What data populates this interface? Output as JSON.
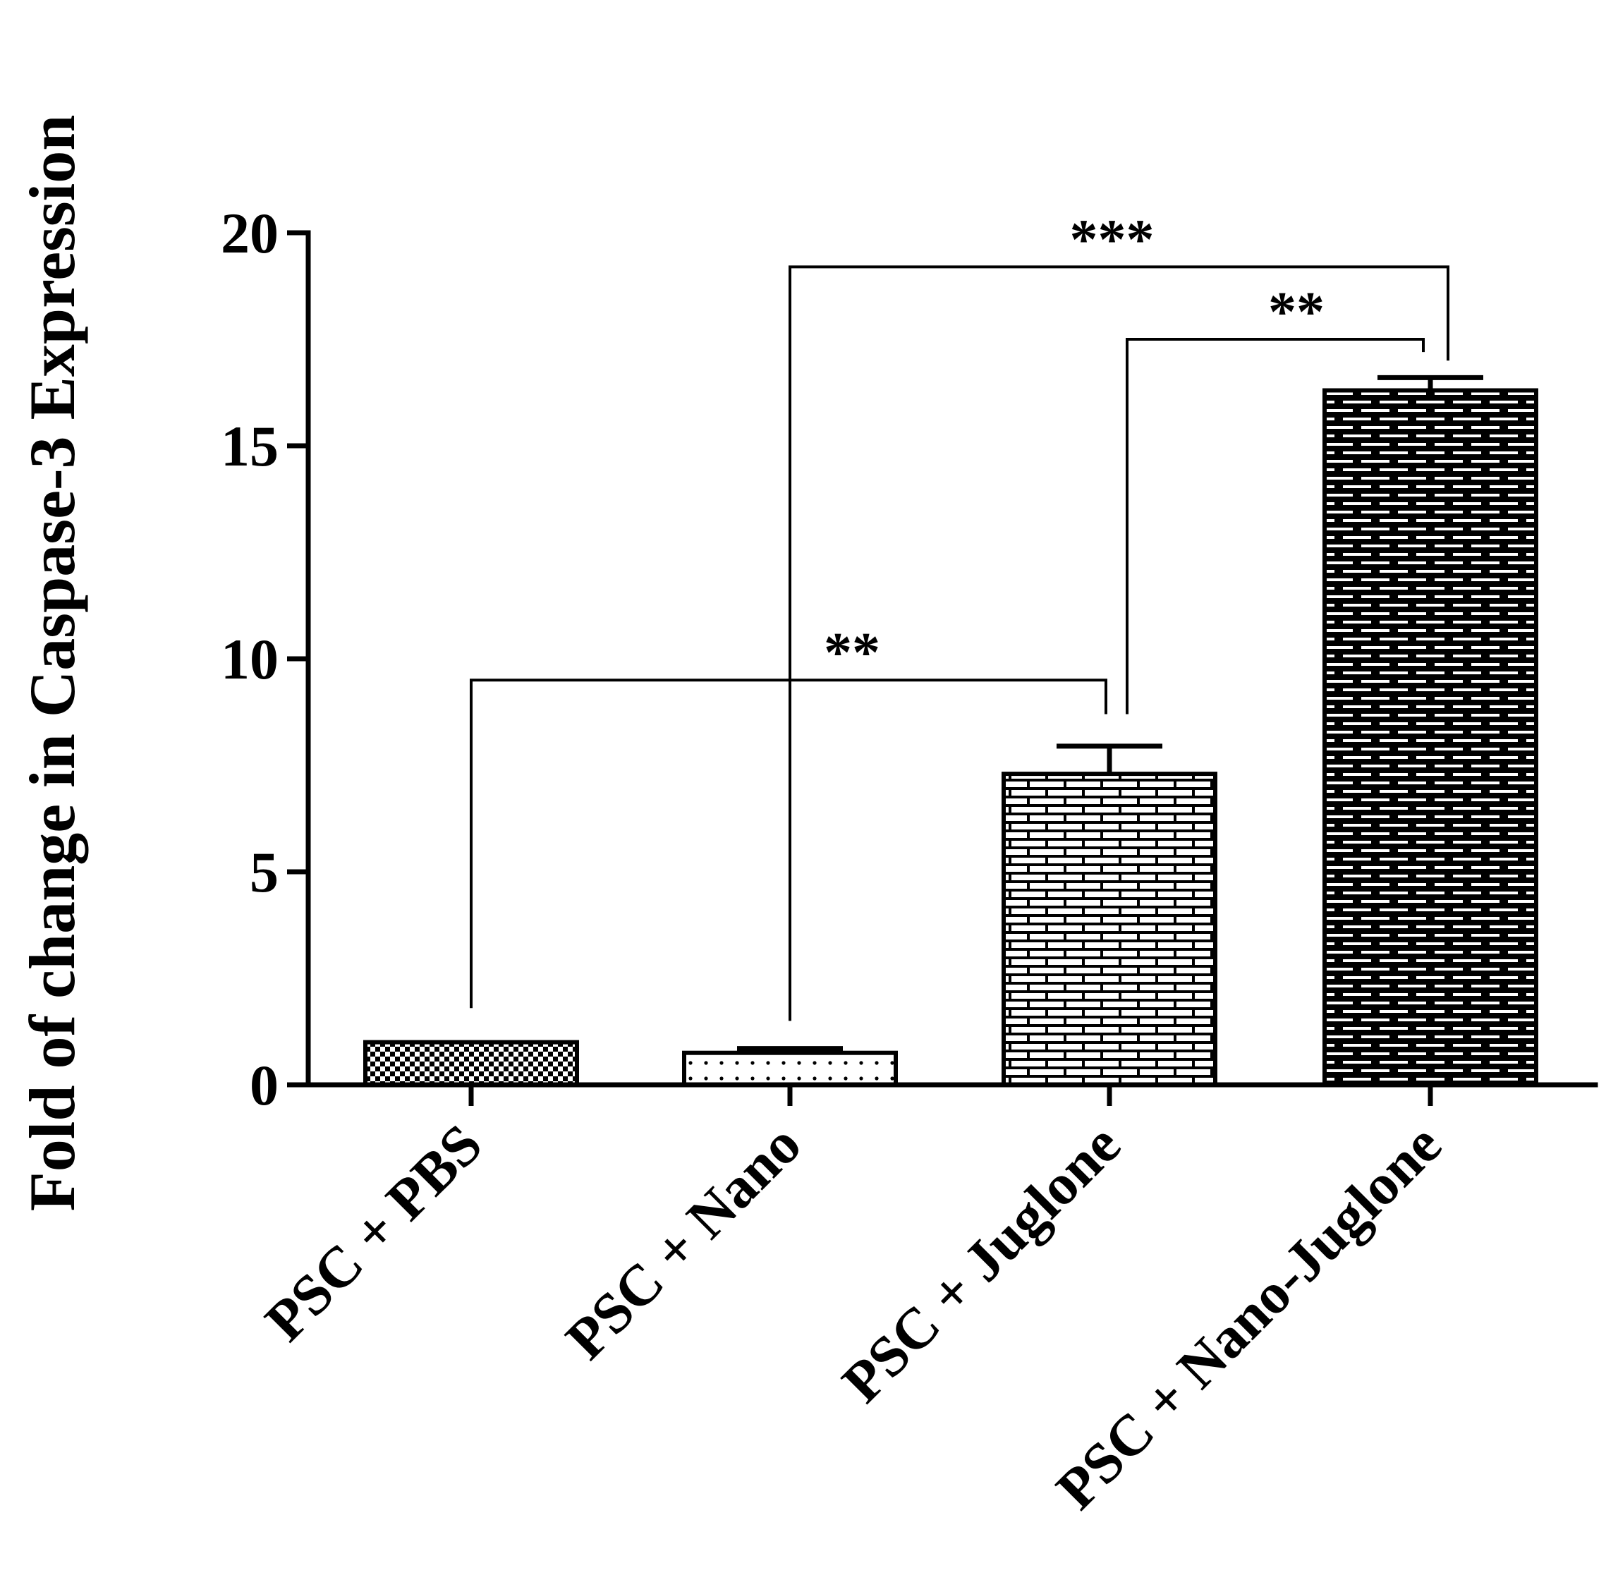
{
  "chart_data": {
    "type": "bar",
    "title": "",
    "xlabel": "",
    "ylabel": "Fold of change in Caspase-3 Expression",
    "ylim": [
      0,
      20
    ],
    "yticks": [
      0,
      5,
      10,
      15,
      20
    ],
    "ytick_labels": [
      "0",
      "5",
      "10",
      "15",
      "20"
    ],
    "grid": false,
    "categories": [
      "PSC + PBS",
      "PSC + Nano",
      "PSC + Juglone",
      "PSC + Nano-Juglone"
    ],
    "values": [
      1.0,
      0.75,
      7.3,
      16.3
    ],
    "errors": [
      0.0,
      0.1,
      0.65,
      0.3
    ],
    "patterns": [
      "checker",
      "dots",
      "brick-light",
      "brick-dark"
    ],
    "significance": [
      {
        "from": 0,
        "to": 2,
        "label": "**",
        "height": 9.5
      },
      {
        "from": 1,
        "to": 3,
        "label": "***",
        "height": 19.2
      },
      {
        "from": 2,
        "to": 3,
        "label": "**",
        "height": 17.5
      }
    ]
  }
}
